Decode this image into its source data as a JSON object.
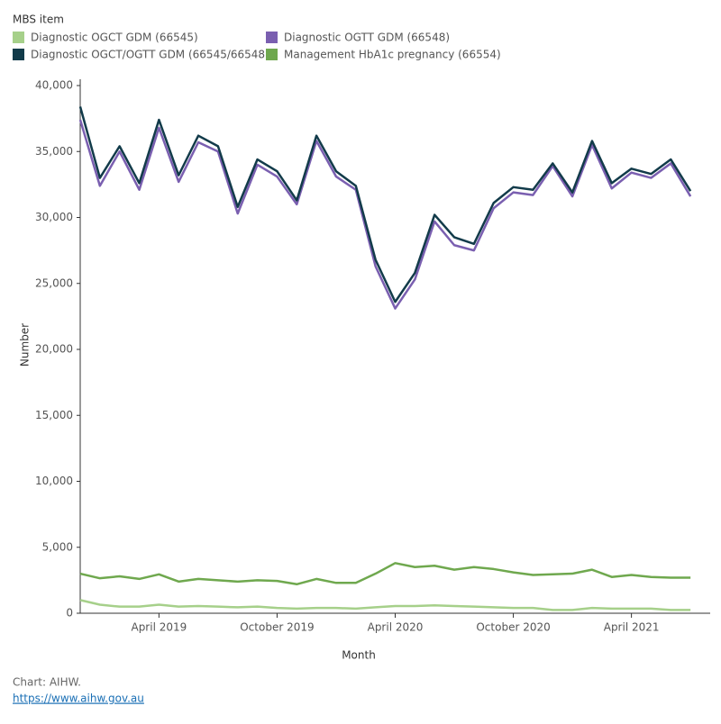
{
  "chart_data": {
    "type": "line",
    "legend_title": "MBS item",
    "x_label": "Month",
    "y_label": "Number",
    "x": [
      "2018-12",
      "2019-01",
      "2019-02",
      "2019-03",
      "2019-04",
      "2019-05",
      "2019-06",
      "2019-07",
      "2019-08",
      "2019-09",
      "2019-10",
      "2019-11",
      "2019-12",
      "2020-01",
      "2020-02",
      "2020-03",
      "2020-04",
      "2020-05",
      "2020-06",
      "2020-07",
      "2020-08",
      "2020-09",
      "2020-10",
      "2020-11",
      "2020-12",
      "2021-01",
      "2021-02",
      "2021-03",
      "2021-04",
      "2021-05",
      "2021-06",
      "2021-07"
    ],
    "xlim": [
      "2018-12",
      "2021-08"
    ],
    "xticks": [
      {
        "value": "2019-04",
        "label": "April 2019"
      },
      {
        "value": "2019-10",
        "label": "October 2019"
      },
      {
        "value": "2020-04",
        "label": "April 2020"
      },
      {
        "value": "2020-10",
        "label": "October 2020"
      },
      {
        "value": "2021-04",
        "label": "April 2021"
      }
    ],
    "ylim": [
      0,
      40000
    ],
    "yticks": [
      0,
      {
        "value": 5000,
        "label": "5,000"
      },
      {
        "value": 10000,
        "label": "10,000"
      },
      {
        "value": 15000,
        "label": "15,000"
      },
      {
        "value": 20000,
        "label": "20,000"
      },
      {
        "value": 25000,
        "label": "25,000"
      },
      {
        "value": 30000,
        "label": "30,000"
      },
      {
        "value": 35000,
        "label": "35,000"
      },
      {
        "value": 40000,
        "label": "40,000"
      }
    ],
    "series": [
      {
        "name": "Diagnostic OGCT GDM (66545)",
        "color": "#a6d08a",
        "values": [
          1000,
          650,
          500,
          500,
          650,
          500,
          550,
          500,
          450,
          500,
          400,
          350,
          400,
          400,
          350,
          450,
          550,
          550,
          600,
          550,
          500,
          450,
          400,
          400,
          250,
          250,
          400,
          350,
          350,
          350,
          250,
          250
        ]
      },
      {
        "name": "Diagnostic OGTT GDM (66548)",
        "color": "#7a5fb0",
        "values": [
          37400,
          32400,
          35000,
          32100,
          36800,
          32700,
          35700,
          35000,
          30300,
          34000,
          33100,
          31000,
          35800,
          33100,
          32100,
          26300,
          23100,
          25300,
          29700,
          27900,
          27500,
          30700,
          31900,
          31700,
          33900,
          31600,
          35500,
          32200,
          33400,
          33000,
          34100,
          31600
        ]
      },
      {
        "name": "Diagnostic OGCT/OGTT GDM (66545/66548)",
        "color": "#123b4a",
        "values": [
          38400,
          33000,
          35400,
          32600,
          37400,
          33200,
          36200,
          35400,
          30800,
          34400,
          33500,
          31300,
          36200,
          33500,
          32400,
          26800,
          23600,
          25800,
          30200,
          28500,
          28000,
          31100,
          32300,
          32100,
          34100,
          31900,
          35800,
          32600,
          33700,
          33300,
          34400,
          32000
        ]
      },
      {
        "name": "Management HbA1c pregnancy (66554)",
        "color": "#6fa84e",
        "values": [
          3000,
          2650,
          2800,
          2600,
          2950,
          2400,
          2600,
          2500,
          2400,
          2500,
          2450,
          2200,
          2600,
          2300,
          2300,
          3000,
          3800,
          3500,
          3600,
          3300,
          3500,
          3350,
          3100,
          2900,
          2950,
          3000,
          3300,
          2750,
          2900,
          2750,
          2700,
          2700
        ]
      }
    ]
  },
  "footer": {
    "credit": "Chart: AIHW.",
    "link": "https://www.aihw.gov.au"
  }
}
